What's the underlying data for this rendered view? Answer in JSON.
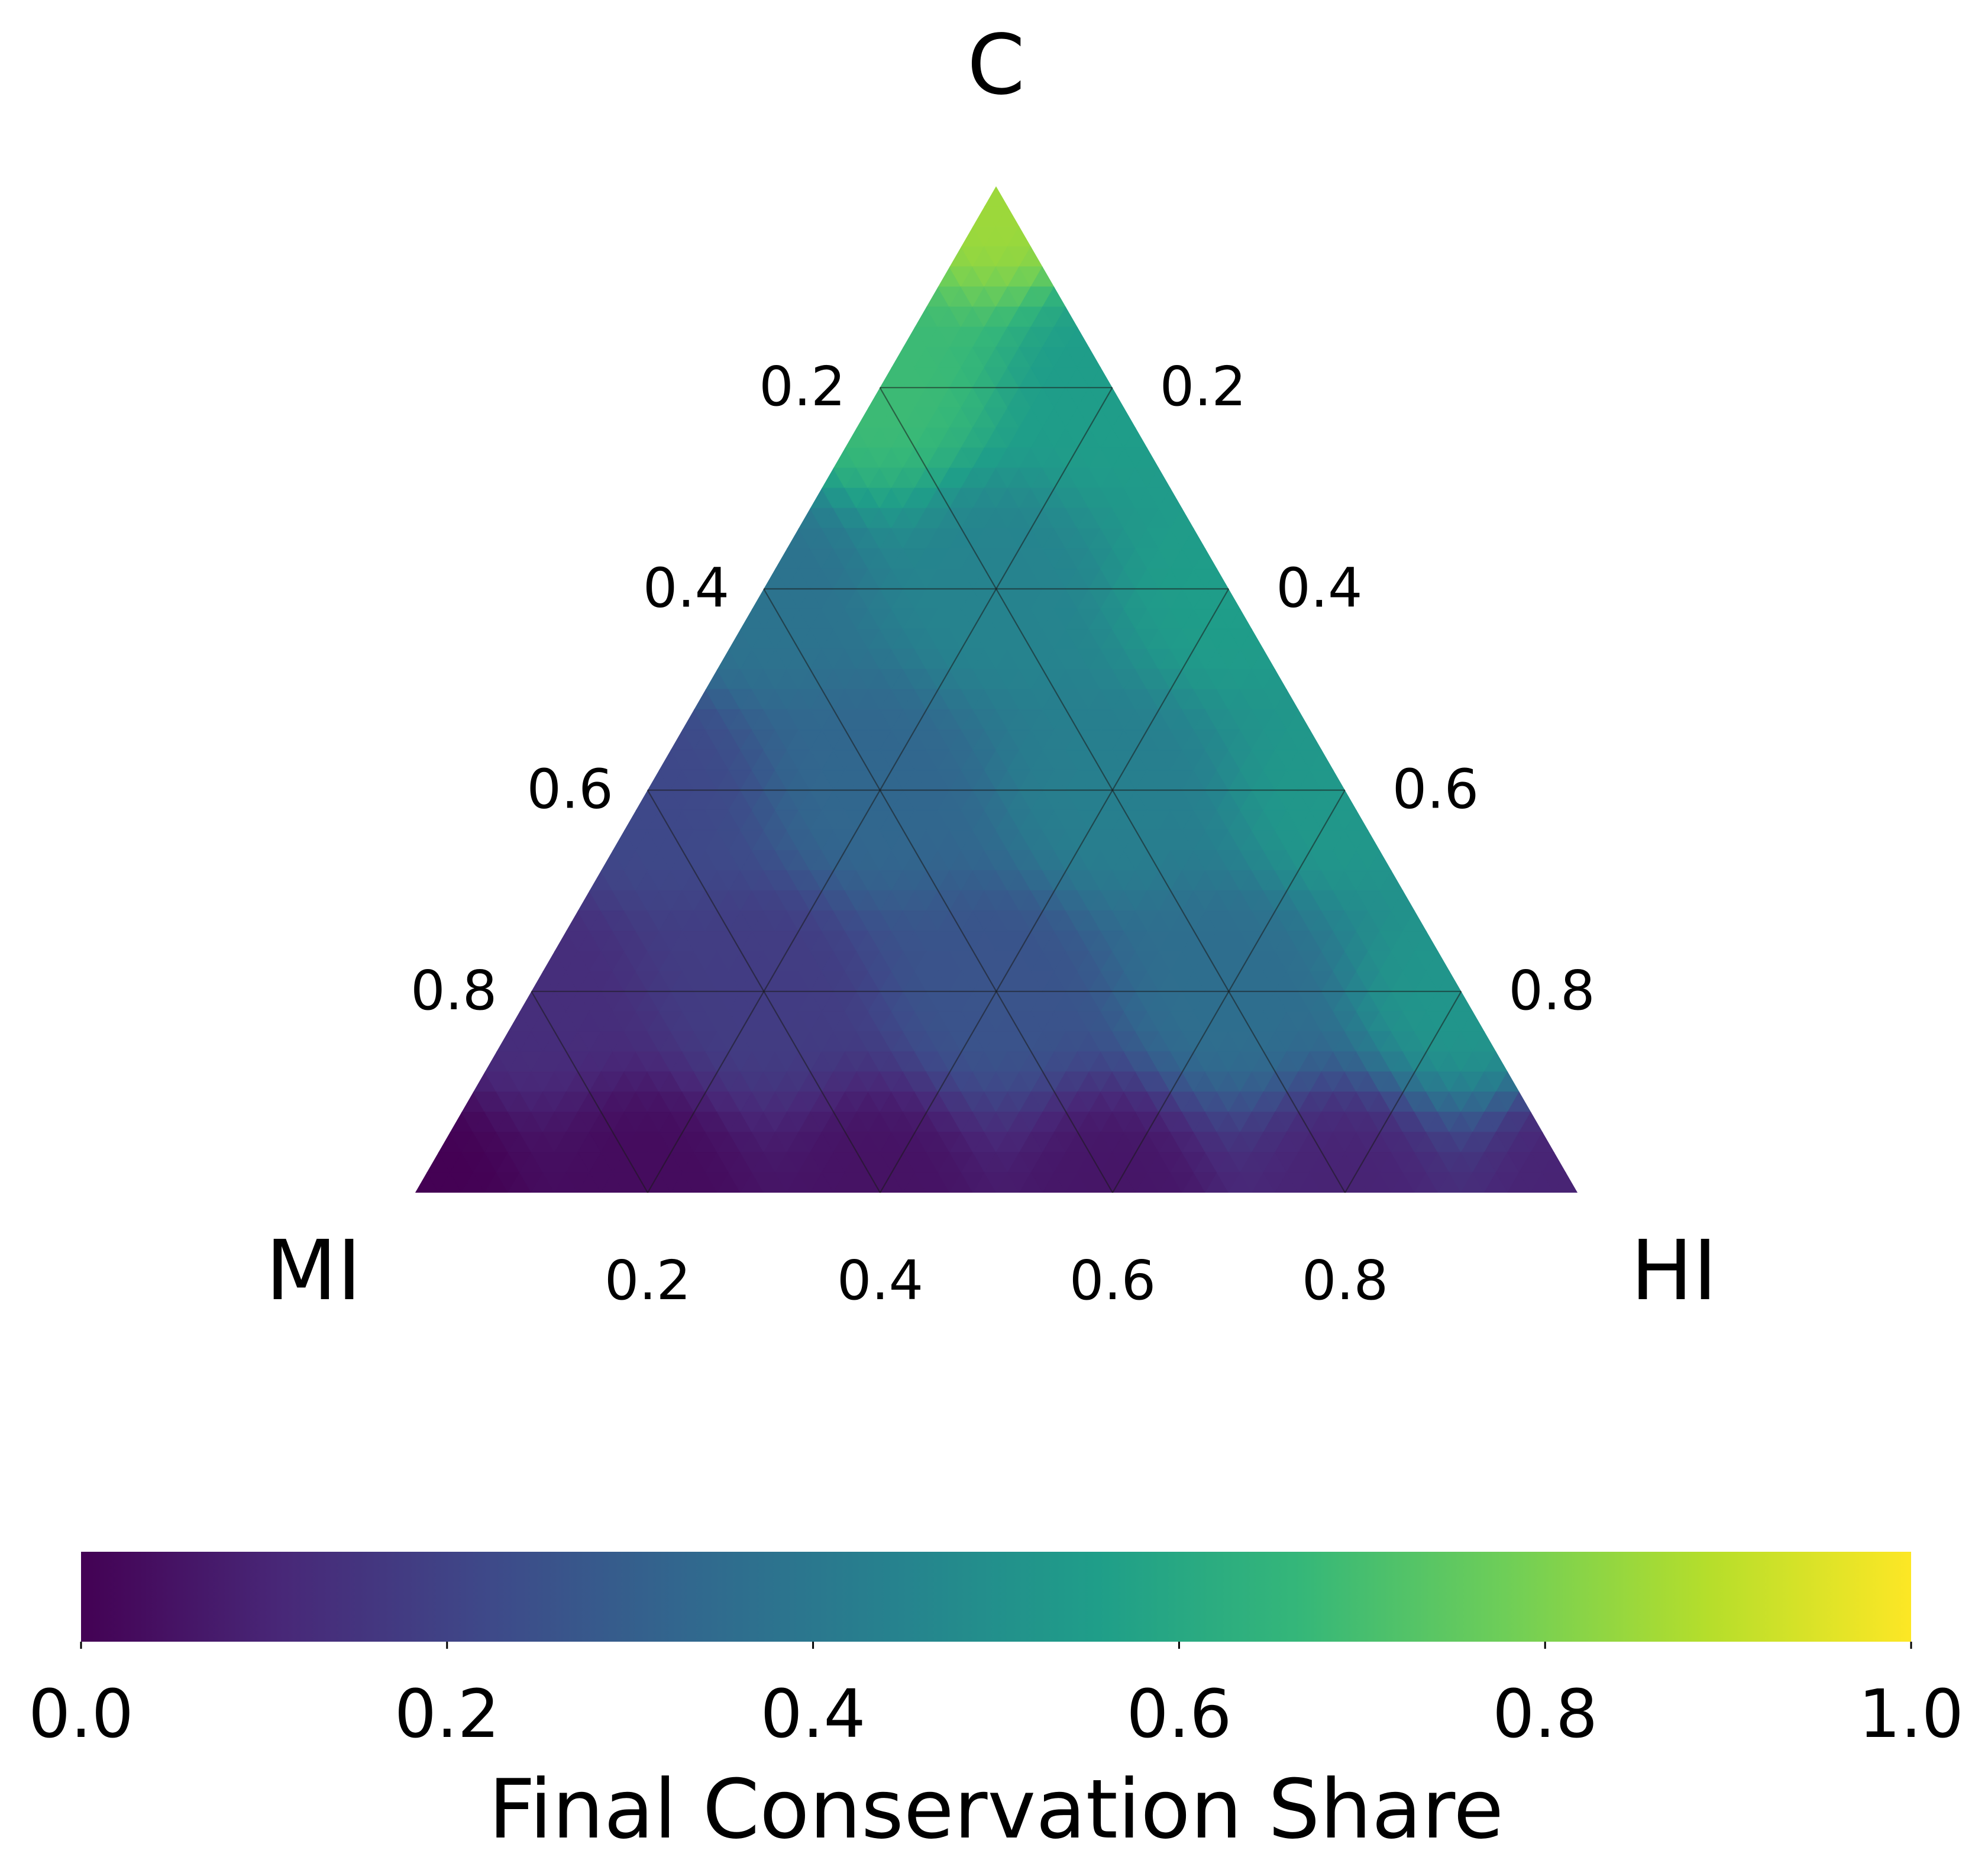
{
  "chart_data": {
    "type": "heatmap",
    "subtype": "ternary",
    "corners": {
      "top": "C",
      "left": "MI",
      "right": "HI"
    },
    "ticks": {
      "left_edge": [
        "0.2",
        "0.4",
        "0.6",
        "0.8"
      ],
      "right_edge": [
        "0.8",
        "0.6",
        "0.4",
        "0.2"
      ],
      "bottom_edge": [
        "0.2",
        "0.4",
        "0.6",
        "0.8"
      ]
    },
    "tick_values": [
      0.2,
      0.4,
      0.6,
      0.8
    ],
    "grid": true,
    "colormap": "viridis",
    "colormap_stops": [
      "#440154",
      "#482878",
      "#3e4989",
      "#31688e",
      "#26828e",
      "#1f9e89",
      "#35b779",
      "#6ece58",
      "#b5de2b",
      "#fde725"
    ],
    "colorbar": {
      "label": "Final Conservation Share",
      "range": [
        0,
        1
      ],
      "ticks": [
        "0.0",
        "0.2",
        "0.4",
        "0.6",
        "0.8",
        "1.0"
      ],
      "placement": "bottom"
    },
    "grid_values": [
      {
        "C": 1.0,
        "MI": 0.0,
        "HI": 0.0,
        "value": 0.85
      },
      {
        "C": 0.8,
        "MI": 0.2,
        "HI": 0.0,
        "value": 0.68
      },
      {
        "C": 0.8,
        "MI": 0.0,
        "HI": 0.2,
        "value": 0.55
      },
      {
        "C": 0.6,
        "MI": 0.4,
        "HI": 0.0,
        "value": 0.38
      },
      {
        "C": 0.6,
        "MI": 0.2,
        "HI": 0.2,
        "value": 0.45
      },
      {
        "C": 0.6,
        "MI": 0.0,
        "HI": 0.4,
        "value": 0.55
      },
      {
        "C": 0.4,
        "MI": 0.6,
        "HI": 0.0,
        "value": 0.22
      },
      {
        "C": 0.4,
        "MI": 0.4,
        "HI": 0.2,
        "value": 0.33
      },
      {
        "C": 0.4,
        "MI": 0.2,
        "HI": 0.4,
        "value": 0.43
      },
      {
        "C": 0.4,
        "MI": 0.0,
        "HI": 0.6,
        "value": 0.53
      },
      {
        "C": 0.2,
        "MI": 0.8,
        "HI": 0.0,
        "value": 0.13
      },
      {
        "C": 0.2,
        "MI": 0.6,
        "HI": 0.2,
        "value": 0.18
      },
      {
        "C": 0.2,
        "MI": 0.4,
        "HI": 0.4,
        "value": 0.26
      },
      {
        "C": 0.2,
        "MI": 0.2,
        "HI": 0.6,
        "value": 0.36
      },
      {
        "C": 0.2,
        "MI": 0.0,
        "HI": 0.8,
        "value": 0.52
      },
      {
        "C": 0.0,
        "MI": 1.0,
        "HI": 0.0,
        "value": 0.0
      },
      {
        "C": 0.0,
        "MI": 0.8,
        "HI": 0.2,
        "value": 0.03
      },
      {
        "C": 0.0,
        "MI": 0.6,
        "HI": 0.4,
        "value": 0.05
      },
      {
        "C": 0.0,
        "MI": 0.4,
        "HI": 0.6,
        "value": 0.06
      },
      {
        "C": 0.0,
        "MI": 0.2,
        "HI": 0.8,
        "value": 0.1
      },
      {
        "C": 0.0,
        "MI": 0.0,
        "HI": 1.0,
        "value": 0.1
      }
    ]
  }
}
